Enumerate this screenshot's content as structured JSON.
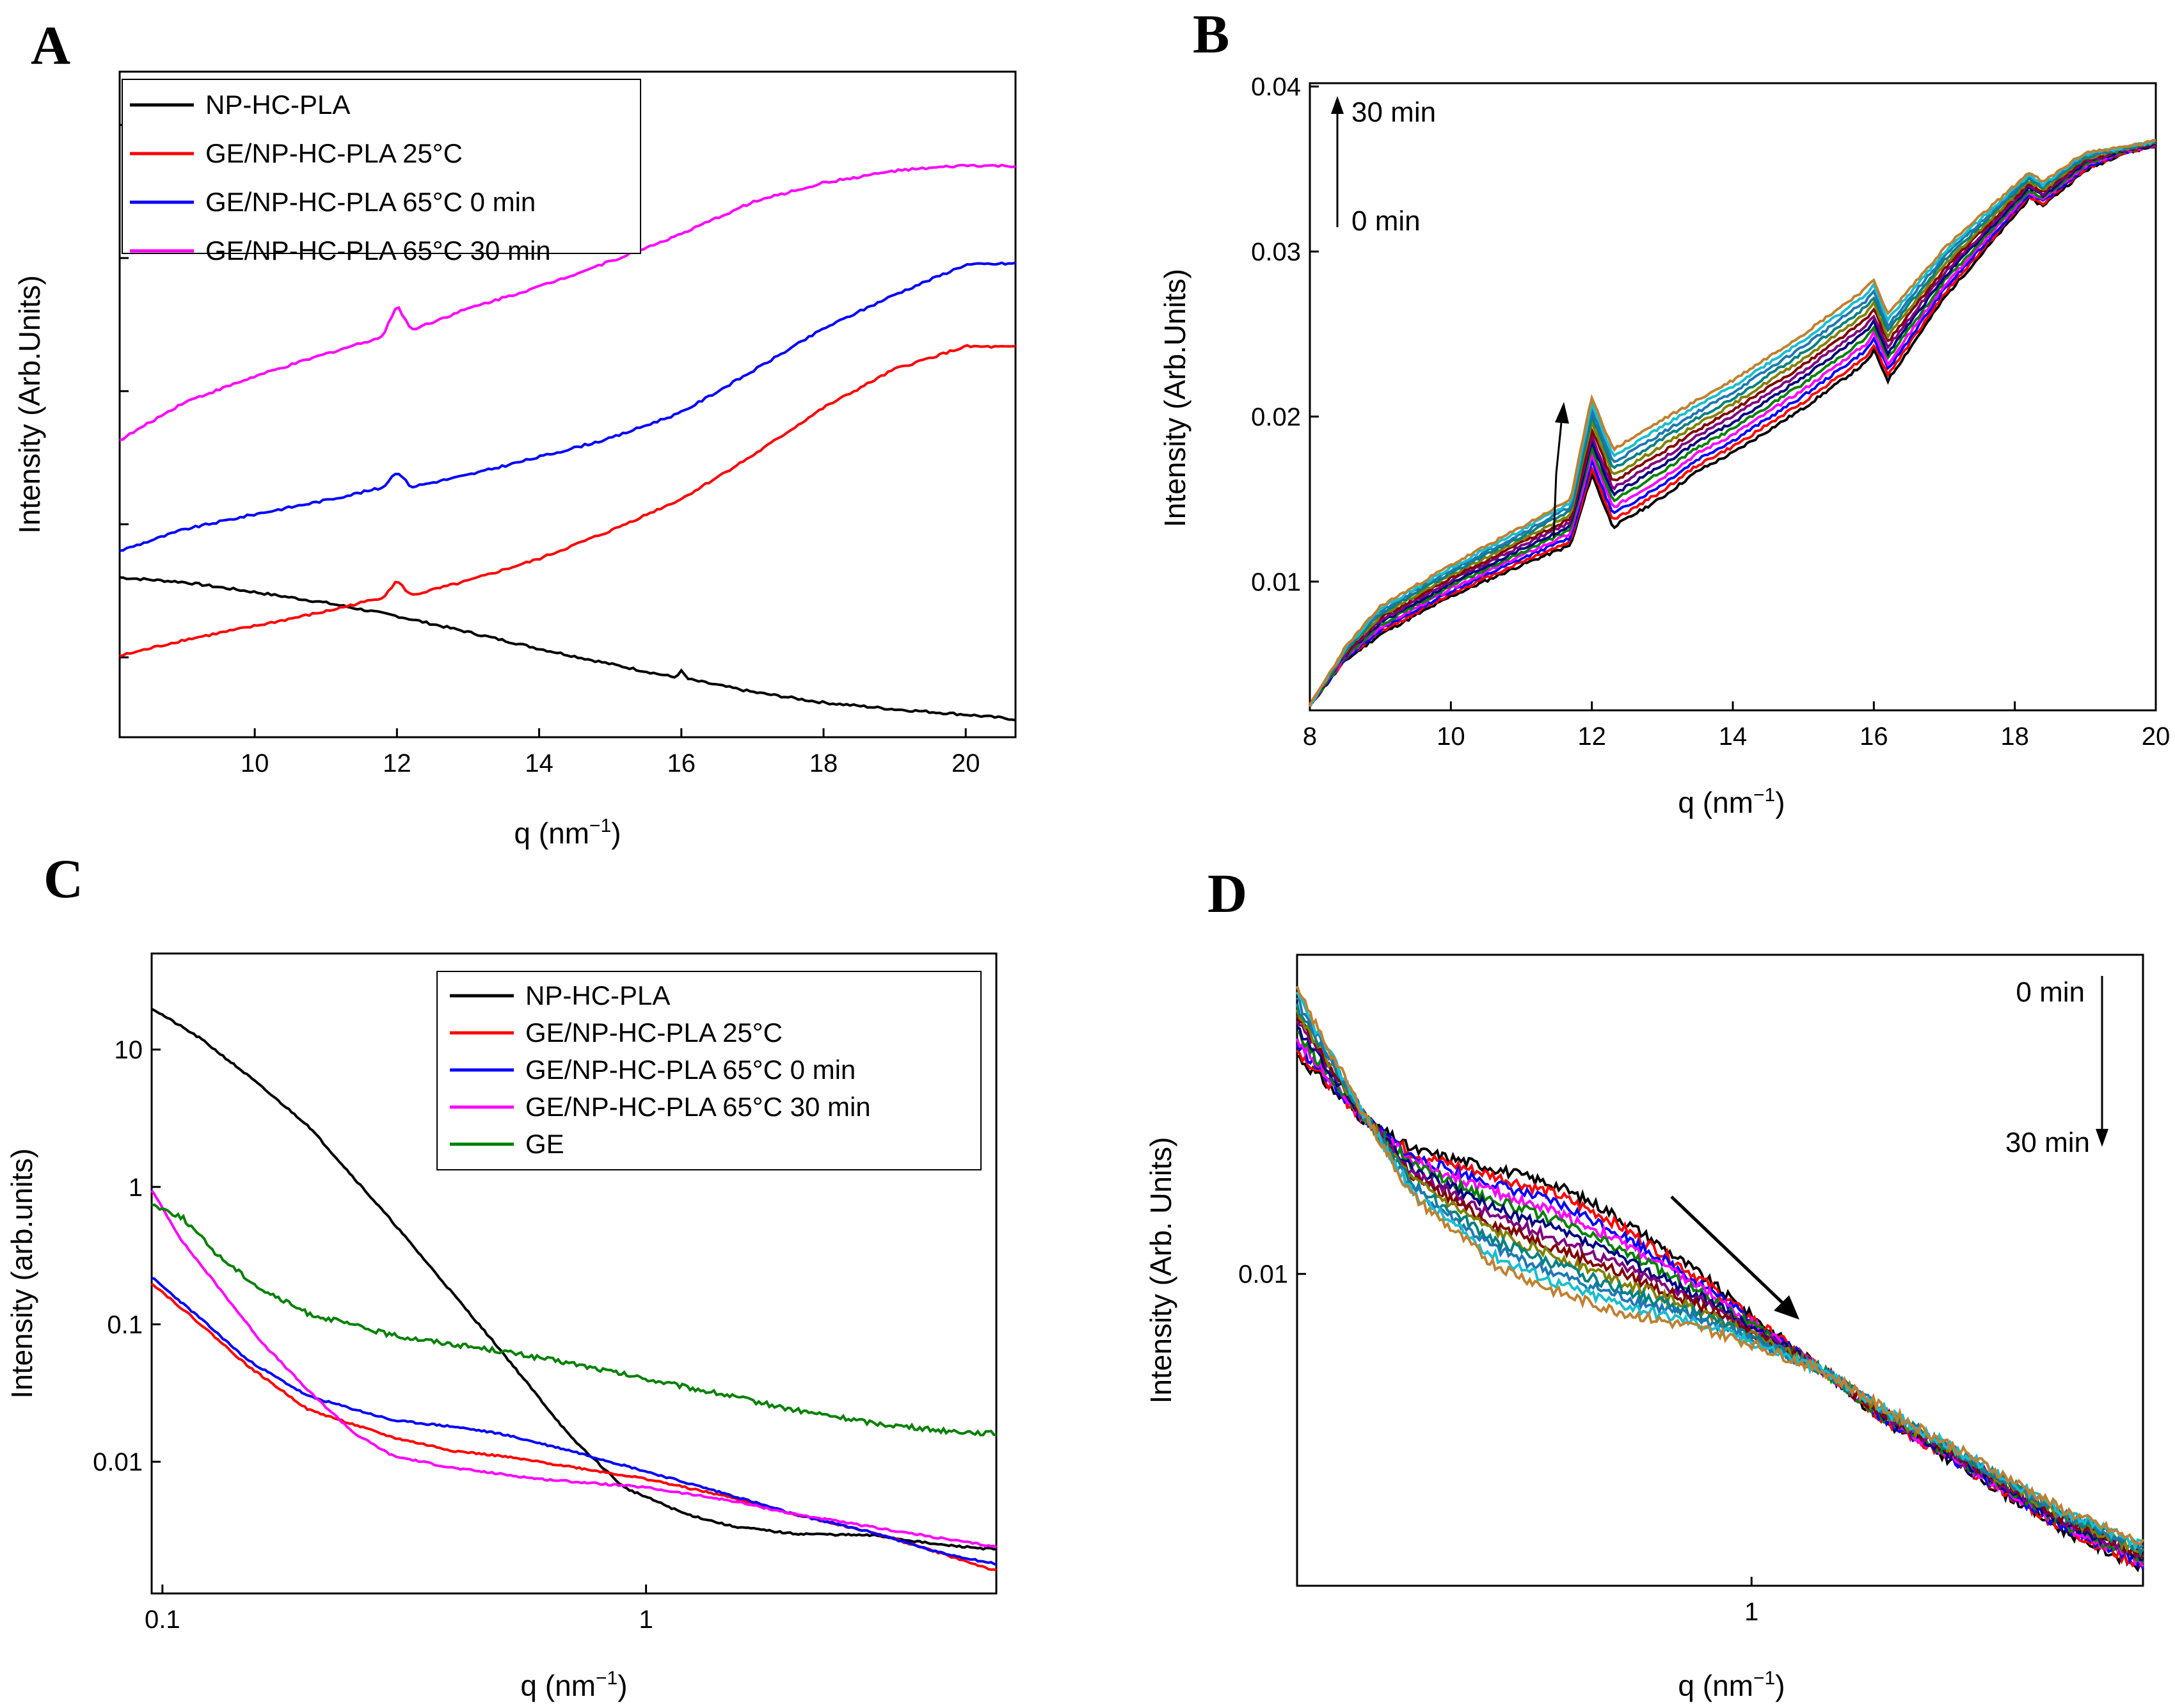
{
  "panel_labels": [
    "A",
    "B",
    "C",
    "D"
  ],
  "palette": {
    "black": "#000000",
    "red": "#ff0000",
    "blue": "#0000ff",
    "magenta": "#ff00ff",
    "green": "#008000",
    "multi": [
      "#000000",
      "#ff0000",
      "#0000ff",
      "#ff00ff",
      "#008000",
      "#000080",
      "#800080",
      "#800000",
      "#808000",
      "#008080",
      "#1f77b4",
      "#17becf",
      "#c08030"
    ]
  },
  "chart_data": [
    {
      "id": "A",
      "type": "line",
      "title": "",
      "xlabel": "q (nm",
      "xlabel_sup": "−1",
      "xlabel_close": ")",
      "ylabel": "Intensity (Arb.Units)",
      "xlim": [
        8.1,
        20.7
      ],
      "ylim": [
        0,
        100
      ],
      "xticks": [
        10,
        12,
        14,
        16,
        18,
        20
      ],
      "xtick_labels": [
        "10",
        "12",
        "14",
        "16",
        "18",
        "20"
      ],
      "yticks_unlabeled": [
        12,
        32,
        52,
        72,
        92
      ],
      "legend": [
        "NP-HC-PLA",
        "GE/NP-HC-PLA 25°C",
        "GE/NP-HC-PLA 65°C 0 min",
        "GE/NP-HC-PLA 65°C 30 min"
      ],
      "series": [
        {
          "name": "NP-HC-PLA",
          "color": "#000000",
          "x": [
            8.1,
            9,
            10,
            11,
            12,
            13,
            14,
            15,
            15.9,
            16.0,
            16.1,
            17,
            18,
            19,
            20,
            20.7
          ],
          "y": [
            24,
            23.3,
            21.8,
            20.2,
            18.2,
            15.8,
            13.3,
            11.0,
            9.0,
            9.9,
            8.7,
            6.8,
            5.2,
            4.2,
            3.4,
            2.7
          ]
        },
        {
          "name": "GE/NP-HC-PLA 25°C",
          "color": "#ff0000",
          "x": [
            8.1,
            9,
            10,
            11,
            11.8,
            12.0,
            12.2,
            13,
            14,
            15,
            16,
            17,
            18,
            19,
            20,
            20.7
          ],
          "y": [
            12.2,
            14.6,
            16.7,
            18.9,
            21.0,
            23.5,
            21.3,
            23.5,
            26.8,
            31.0,
            35.8,
            42.3,
            49.5,
            55.3,
            58.7,
            58.6
          ]
        },
        {
          "name": "GE/NP-HC-PLA 65°C 0 min",
          "color": "#0000ff",
          "x": [
            8.1,
            9,
            10,
            11,
            11.8,
            12.0,
            12.2,
            13,
            14,
            15,
            16,
            17,
            18,
            19,
            20,
            20.7
          ],
          "y": [
            28.0,
            31.2,
            33.5,
            35.6,
            37.5,
            40.0,
            37.6,
            39.4,
            42.1,
            44.9,
            48.8,
            55.0,
            61.4,
            66.5,
            71.0,
            71.2
          ]
        },
        {
          "name": "GE/NP-HC-PLA 65°C 30 min",
          "color": "#ff00ff",
          "x": [
            8.1,
            9,
            10,
            11,
            11.8,
            12.0,
            12.2,
            13,
            14,
            15,
            16,
            17,
            18,
            19,
            20,
            20.7
          ],
          "y": [
            44.6,
            50.3,
            54.2,
            57.6,
            60.2,
            65.0,
            61.2,
            64.4,
            67.7,
            71.5,
            75.6,
            80.4,
            83.3,
            85.1,
            85.9,
            85.8
          ]
        }
      ]
    },
    {
      "id": "B",
      "type": "line",
      "title": "",
      "xlabel": "q (nm",
      "xlabel_sup": "−1",
      "xlabel_close": ")",
      "ylabel": "Intensity (Arb.Units)",
      "xlim": [
        8,
        20
      ],
      "ylim": [
        0.0022,
        0.0402
      ],
      "xticks": [
        8,
        10,
        12,
        14,
        16,
        18,
        20
      ],
      "xtick_labels": [
        "8",
        "10",
        "12",
        "14",
        "16",
        "18",
        "20"
      ],
      "yticks": [
        0.01,
        0.02,
        0.03,
        0.04
      ],
      "ytick_labels": [
        "0.01",
        "0.02",
        "0.03",
        "0.04"
      ],
      "annotations": [
        "30 min",
        "0 min"
      ],
      "n_curves": 13,
      "curve_x": [
        8,
        8.5,
        9,
        10,
        11,
        11.7,
        12.0,
        12.3,
        13,
        13.5,
        14,
        15,
        15.9,
        16.0,
        16.2,
        17,
        18,
        18.2,
        18.4,
        19,
        19.5,
        20
      ],
      "base_curve": [
        0.0025,
        0.0052,
        0.0068,
        0.0091,
        0.011,
        0.0122,
        0.0165,
        0.0133,
        0.0151,
        0.0167,
        0.0178,
        0.0205,
        0.0233,
        0.024,
        0.0222,
        0.0272,
        0.0322,
        0.0332,
        0.0328,
        0.0349,
        0.0359,
        0.0364
      ],
      "top_curve": [
        0.0025,
        0.006,
        0.0085,
        0.011,
        0.0133,
        0.015,
        0.0212,
        0.018,
        0.0198,
        0.021,
        0.0222,
        0.025,
        0.0278,
        0.0283,
        0.0262,
        0.0302,
        0.034,
        0.0348,
        0.0342,
        0.036,
        0.0363,
        0.0367
      ]
    },
    {
      "id": "C",
      "type": "line",
      "title": "",
      "xlabel": "q (nm",
      "xlabel_sup": "−1",
      "xlabel_close": ")",
      "ylabel": "Intensity (arb.units)",
      "xscale": "log",
      "yscale": "log",
      "xlim": [
        0.095,
        5.3
      ],
      "ylim": [
        0.0011,
        50
      ],
      "xticks": [
        0.1,
        1
      ],
      "xtick_labels": [
        "0.1",
        "1"
      ],
      "yticks": [
        0.01,
        0.1,
        1,
        10
      ],
      "ytick_labels": [
        "0.01",
        "0.1",
        "1",
        "10"
      ],
      "legend": [
        "NP-HC-PLA",
        "GE/NP-HC-PLA 25°C",
        "GE/NP-HC-PLA 65°C 0 min",
        "GE/NP-HC-PLA 65°C 30 min",
        "GE"
      ],
      "series": [
        {
          "name": "NP-HC-PLA",
          "color": "#000000",
          "x": [
            0.095,
            0.12,
            0.15,
            0.2,
            0.3,
            0.5,
            0.7,
            0.9,
            1.2,
            1.5,
            2,
            3,
            4,
            5.3
          ],
          "y": [
            20,
            12,
            6.5,
            2.8,
            0.55,
            0.065,
            0.015,
            0.0065,
            0.0042,
            0.0034,
            0.003,
            0.0029,
            0.0025,
            0.0023
          ]
        },
        {
          "name": "GE/NP-HC-PLA 25°C",
          "color": "#ff0000",
          "x": [
            0.095,
            0.12,
            0.15,
            0.2,
            0.3,
            0.4,
            0.5,
            0.7,
            1,
            1.5,
            2,
            3,
            4,
            5.3
          ],
          "y": [
            0.2,
            0.1,
            0.05,
            0.024,
            0.015,
            0.012,
            0.011,
            0.0092,
            0.0075,
            0.0055,
            0.0042,
            0.003,
            0.0022,
            0.0016
          ]
        },
        {
          "name": "GE/NP-HC-PLA 65°C 0 min",
          "color": "#0000ff",
          "x": [
            0.095,
            0.12,
            0.15,
            0.2,
            0.3,
            0.4,
            0.5,
            0.7,
            1,
            1.5,
            2,
            3,
            4,
            5.3
          ],
          "y": [
            0.22,
            0.11,
            0.055,
            0.03,
            0.02,
            0.018,
            0.016,
            0.012,
            0.0085,
            0.0057,
            0.0042,
            0.003,
            0.0022,
            0.0018
          ]
        },
        {
          "name": "GE/NP-HC-PLA 65°C 30 min",
          "color": "#ff00ff",
          "x": [
            0.095,
            0.11,
            0.13,
            0.16,
            0.2,
            0.25,
            0.3,
            0.4,
            0.6,
            1,
            1.5,
            2,
            3,
            4,
            5.3
          ],
          "y": [
            0.95,
            0.4,
            0.19,
            0.075,
            0.033,
            0.016,
            0.011,
            0.009,
            0.0075,
            0.0065,
            0.0052,
            0.0042,
            0.0033,
            0.0028,
            0.0024
          ]
        },
        {
          "name": "GE",
          "color": "#008000",
          "x": [
            0.095,
            0.11,
            0.13,
            0.16,
            0.2,
            0.3,
            0.5,
            0.7,
            1,
            1.5,
            2,
            3,
            4,
            5.3
          ],
          "y": [
            0.75,
            0.6,
            0.32,
            0.18,
            0.12,
            0.083,
            0.064,
            0.052,
            0.04,
            0.03,
            0.024,
            0.019,
            0.017,
            0.016
          ]
        }
      ]
    },
    {
      "id": "D",
      "type": "line",
      "title": "",
      "xlabel": "q (nm",
      "xlabel_sup": "−1",
      "xlabel_close": ")",
      "ylabel": "Intensity (Arb. Units)",
      "xscale": "log",
      "yscale": "log",
      "xlim": [
        0.2,
        4.0
      ],
      "ylim": [
        0.0023,
        0.045
      ],
      "xticks": [
        1
      ],
      "xtick_labels": [
        "1"
      ],
      "yticks": [
        0.01
      ],
      "ytick_labels": [
        "0.01"
      ],
      "annotations": [
        "0 min",
        "30 min"
      ],
      "n_curves": 13,
      "curve_x": [
        0.2,
        0.25,
        0.3,
        0.4,
        0.5,
        0.6,
        0.7,
        0.85,
        1.0,
        1.3,
        1.6,
        2.0,
        2.5,
        3.0,
        4.0
      ],
      "first_curve": [
        0.028,
        0.021,
        0.018,
        0.0165,
        0.0152,
        0.0135,
        0.0118,
        0.0098,
        0.0082,
        0.0063,
        0.005,
        0.0042,
        0.0035,
        0.003,
        0.0025
      ],
      "last_curve": [
        0.038,
        0.022,
        0.0145,
        0.0105,
        0.0092,
        0.0085,
        0.0081,
        0.0077,
        0.0072,
        0.0063,
        0.0053,
        0.0045,
        0.0038,
        0.0033,
        0.0028
      ]
    }
  ]
}
